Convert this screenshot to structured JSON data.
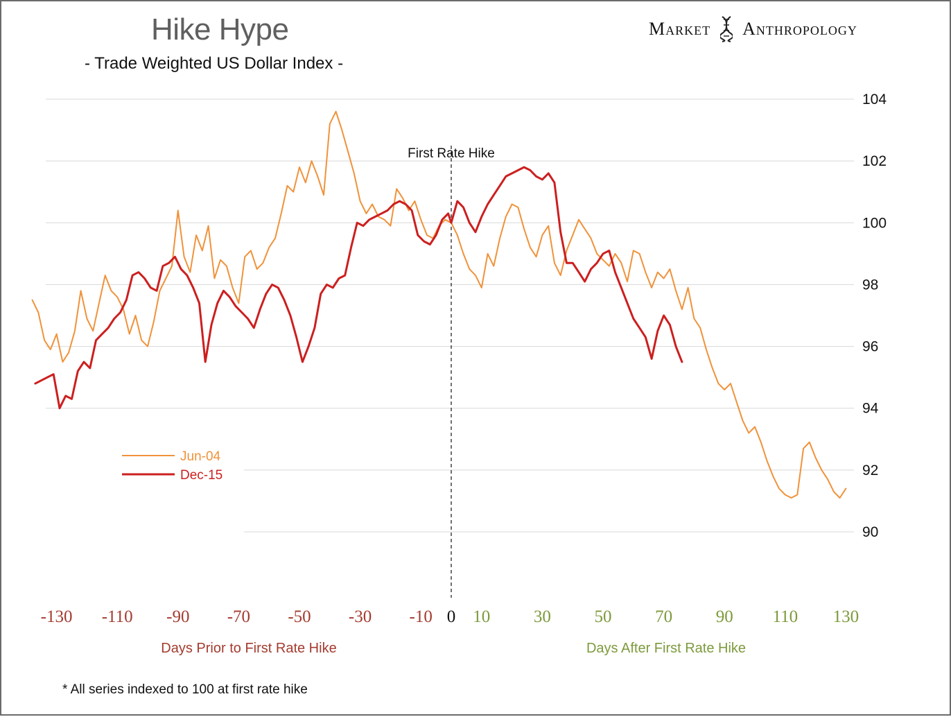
{
  "header": {
    "title": "Hike Hype",
    "subtitle": "- Trade Weighted US Dollar Index -",
    "brand_left": "Market",
    "brand_right": "Anthropology"
  },
  "footnote": "* All series indexed to 100 at first rate hike",
  "colors": {
    "jun04": "#f0923a",
    "dec15": "#cc1f1f",
    "prior": "#a43b2f",
    "after": "#7d9a3c",
    "grid": "#d8d8d8"
  },
  "chart_data": {
    "type": "line",
    "title": "Hike Hype",
    "subtitle": "- Trade Weighted US Dollar Index -",
    "x_ticks": [
      -130,
      -110,
      -90,
      -70,
      -50,
      -30,
      -10,
      0,
      10,
      30,
      50,
      70,
      90,
      110,
      130
    ],
    "x_tick_labels": [
      "-130",
      "-110",
      "-90",
      "-70",
      "-50",
      "-30",
      "-10",
      "0",
      "10",
      "30",
      "50",
      "70",
      "90",
      "110",
      "130"
    ],
    "y_ticks": [
      90,
      92,
      94,
      96,
      98,
      100,
      102,
      104
    ],
    "ylim": [
      88,
      104
    ],
    "xlim": [
      -137,
      138
    ],
    "xlabel_prior": "Days Prior to First Rate Hike",
    "xlabel_after": "Days After First Rate Hike",
    "annotation": {
      "text": "First Rate Hike",
      "x": 0
    },
    "legend": [
      {
        "name": "Jun-04",
        "color": "#f0923a"
      },
      {
        "name": "Dec-15",
        "color": "#cc1f1f"
      }
    ],
    "series": [
      {
        "name": "Jun-04",
        "color": "#f0923a",
        "x": [
          -138,
          -136,
          -134,
          -132,
          -130,
          -128,
          -126,
          -124,
          -122,
          -120,
          -118,
          -116,
          -114,
          -112,
          -110,
          -108,
          -106,
          -104,
          -102,
          -100,
          -98,
          -96,
          -94,
          -92,
          -90,
          -88,
          -86,
          -84,
          -82,
          -80,
          -78,
          -76,
          -74,
          -72,
          -70,
          -68,
          -66,
          -64,
          -62,
          -60,
          -58,
          -56,
          -54,
          -52,
          -50,
          -48,
          -46,
          -44,
          -42,
          -40,
          -38,
          -36,
          -34,
          -32,
          -30,
          -28,
          -26,
          -24,
          -22,
          -20,
          -18,
          -16,
          -14,
          -12,
          -10,
          -8,
          -6,
          -4,
          -2,
          0,
          2,
          4,
          6,
          8,
          10,
          12,
          14,
          16,
          18,
          20,
          22,
          24,
          26,
          28,
          30,
          32,
          34,
          36,
          38,
          40,
          42,
          44,
          46,
          48,
          50,
          52,
          54,
          56,
          58,
          60,
          62,
          64,
          66,
          68,
          70,
          72,
          74,
          76,
          78,
          80,
          82,
          84,
          86,
          88,
          90,
          92,
          94,
          96,
          98,
          100,
          102,
          104,
          106,
          108,
          110,
          112,
          114,
          116,
          118,
          120,
          122,
          124,
          126,
          128,
          130
        ],
        "y": [
          97.5,
          97.1,
          96.2,
          95.9,
          96.4,
          95.5,
          95.8,
          96.5,
          97.8,
          96.9,
          96.5,
          97.4,
          98.3,
          97.8,
          97.6,
          97.2,
          96.4,
          97.0,
          96.2,
          96.0,
          96.8,
          97.8,
          98.2,
          98.6,
          100.4,
          98.9,
          98.4,
          99.6,
          99.1,
          99.9,
          98.2,
          98.8,
          98.6,
          97.9,
          97.4,
          98.9,
          99.1,
          98.5,
          98.7,
          99.2,
          99.5,
          100.3,
          101.2,
          101.0,
          101.8,
          101.3,
          102.0,
          101.5,
          100.9,
          103.2,
          103.6,
          103.0,
          102.3,
          101.6,
          100.7,
          100.3,
          100.6,
          100.2,
          100.1,
          99.9,
          101.1,
          100.8,
          100.4,
          100.7,
          100.1,
          99.6,
          99.5,
          99.9,
          100.1,
          100.0,
          99.6,
          99.0,
          98.5,
          98.3,
          97.9,
          99.0,
          98.6,
          99.5,
          100.2,
          100.6,
          100.5,
          99.8,
          99.2,
          98.9,
          99.6,
          99.9,
          98.7,
          98.3,
          99.1,
          99.6,
          100.1,
          99.8,
          99.5,
          99.0,
          98.8,
          98.6,
          99.0,
          98.7,
          98.1,
          99.1,
          99.0,
          98.4,
          97.9,
          98.4,
          98.2,
          98.5,
          97.8,
          97.2,
          97.9,
          96.9,
          96.6,
          95.9,
          95.3,
          94.8,
          94.6,
          94.8,
          94.2,
          93.6,
          93.2,
          93.4,
          92.9,
          92.3,
          91.8,
          91.4,
          91.2,
          91.1,
          91.2,
          92.7,
          92.9,
          92.4,
          92.0,
          91.7,
          91.3,
          91.1,
          91.4
        ]
      },
      {
        "name": "Dec-15",
        "color": "#cc1f1f",
        "x": [
          -137,
          -135,
          -133,
          -131,
          -129,
          -127,
          -125,
          -123,
          -121,
          -119,
          -117,
          -115,
          -113,
          -111,
          -109,
          -107,
          -105,
          -103,
          -101,
          -99,
          -97,
          -95,
          -93,
          -91,
          -89,
          -87,
          -85,
          -83,
          -81,
          -79,
          -77,
          -75,
          -73,
          -71,
          -69,
          -67,
          -65,
          -63,
          -61,
          -59,
          -57,
          -55,
          -53,
          -51,
          -49,
          -47,
          -45,
          -43,
          -41,
          -39,
          -37,
          -35,
          -33,
          -31,
          -29,
          -27,
          -25,
          -23,
          -21,
          -19,
          -17,
          -15,
          -13,
          -11,
          -9,
          -7,
          -5,
          -3,
          -1,
          0,
          2,
          4,
          6,
          8,
          10,
          12,
          14,
          16,
          18,
          20,
          22,
          24,
          26,
          28,
          30,
          32,
          34,
          36,
          38,
          40,
          42,
          44,
          46,
          48,
          50,
          52,
          54,
          56,
          58,
          60,
          62,
          64,
          66,
          68,
          70,
          72,
          74,
          76
        ],
        "y": [
          94.8,
          94.9,
          95.0,
          95.1,
          94.0,
          94.4,
          94.3,
          95.2,
          95.5,
          95.3,
          96.2,
          96.4,
          96.6,
          96.9,
          97.1,
          97.5,
          98.3,
          98.4,
          98.2,
          97.9,
          97.8,
          98.6,
          98.7,
          98.9,
          98.5,
          98.3,
          97.9,
          97.4,
          95.5,
          96.7,
          97.4,
          97.8,
          97.6,
          97.3,
          97.1,
          96.9,
          96.6,
          97.2,
          97.7,
          98.0,
          97.9,
          97.5,
          97.0,
          96.3,
          95.5,
          96.0,
          96.6,
          97.7,
          98.0,
          97.9,
          98.2,
          98.3,
          99.2,
          100.0,
          99.9,
          100.1,
          100.2,
          100.3,
          100.4,
          100.6,
          100.7,
          100.6,
          100.4,
          99.6,
          99.4,
          99.3,
          99.6,
          100.1,
          100.3,
          100.0,
          100.7,
          100.5,
          100.0,
          99.7,
          100.2,
          100.6,
          100.9,
          101.2,
          101.5,
          101.6,
          101.7,
          101.8,
          101.7,
          101.5,
          101.4,
          101.6,
          101.3,
          99.7,
          98.7,
          98.7,
          98.4,
          98.1,
          98.5,
          98.7,
          99.0,
          99.1,
          98.4,
          97.9,
          97.4,
          96.9,
          96.6,
          96.3,
          95.6,
          96.5,
          97.0,
          96.7,
          96.0,
          95.5
        ]
      }
    ]
  }
}
